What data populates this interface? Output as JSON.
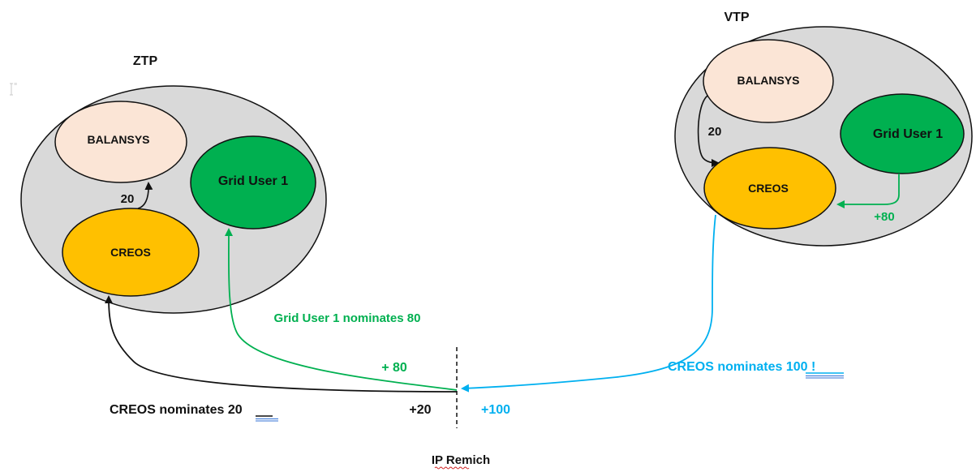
{
  "colors": {
    "zone_fill": "#d9d9d9",
    "balansys_fill": "#fbe5d6",
    "creos_fill": "#ffc000",
    "grid_user_fill": "#00b050",
    "green_text": "#00b050",
    "blue_text": "#00b0f0",
    "black": "#111111"
  },
  "zones": {
    "ztp": {
      "label": "ZTP",
      "balansys": "BALANSYS",
      "creos": "CREOS",
      "grid_user": "Grid User 1",
      "flow_creos_to_balansys": "20"
    },
    "vtp": {
      "label": "VTP",
      "balansys": "BALANSYS",
      "creos": "CREOS",
      "grid_user": "Grid User 1",
      "flow_balansys_to_creos": "20",
      "flow_grid_user_to_creos": "+80"
    }
  },
  "interconnection_point": {
    "label": "IP Remich",
    "plus_80": "+ 80",
    "plus_20": "+20",
    "plus_100": "+100"
  },
  "annotations": {
    "grid_user_nominates": "Grid User 1 nominates 80",
    "creos_nominates_20_prefix": "CREOS nominates ",
    "creos_nominates_20_value": "20",
    "creos_nominates_100_prefix": "CREOS nominates ",
    "creos_nominates_100_value": "100 !"
  },
  "icons": [
    "cursor-icon"
  ]
}
